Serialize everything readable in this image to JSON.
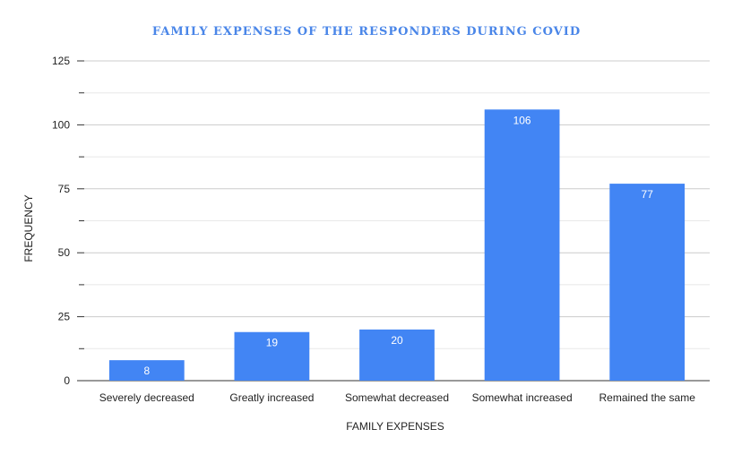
{
  "chart_data": {
    "type": "bar",
    "title": "FAMILY EXPENSES OF THE RESPONDERS DURING COVID",
    "xlabel": "FAMILY EXPENSES",
    "ylabel": "FREQUENCY",
    "categories": [
      "Severely decreased",
      "Greatly increased",
      "Somewhat decreased",
      "Somewhat increased",
      "Remained the same"
    ],
    "values": [
      8,
      19,
      20,
      106,
      77
    ],
    "ylim": [
      0,
      125
    ],
    "yticks": [
      0,
      25,
      50,
      75,
      100,
      125
    ],
    "grid": true,
    "legend": "none",
    "colors": {
      "bar": "#4285f4",
      "title": "#4a86e8",
      "grid": "#cccccc",
      "minor_grid": "#e8e8e8",
      "axis": "#333333",
      "data_label": "#ffffff"
    }
  }
}
